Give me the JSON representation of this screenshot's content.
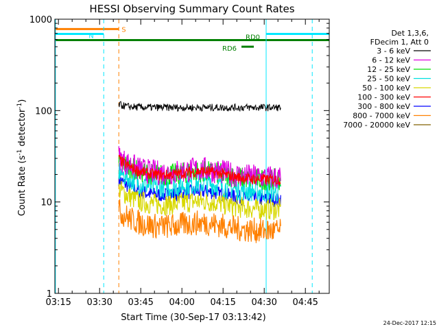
{
  "chart_data": {
    "type": "line",
    "title": "HESSI Observing Summary Count Rates",
    "xlabel": "Start Time (30-Sep-17 03:13:42)",
    "ylabel_main": "Count Rate (s",
    "ylabel_sup": "-1",
    "ylabel_mid": " detector",
    "ylabel_sup2": "-1",
    "ylabel_end": ")",
    "y_scale": "log",
    "ylim": [
      1,
      1000
    ],
    "xlim_minutes": [
      0,
      100
    ],
    "x_ticks": [
      {
        "label": "03:15",
        "minute": 1.3
      },
      {
        "label": "03:30",
        "minute": 16.3
      },
      {
        "label": "03:45",
        "minute": 31.3
      },
      {
        "label": "04:00",
        "minute": 46.3
      },
      {
        "label": "04:15",
        "minute": 61.3
      },
      {
        "label": "04:30",
        "minute": 76.3
      },
      {
        "label": "04:45",
        "minute": 91.3
      }
    ],
    "y_ticks": [
      {
        "label": "1",
        "value": 1
      },
      {
        "label": "10",
        "value": 10
      },
      {
        "label": "100",
        "value": 100
      },
      {
        "label": "1000",
        "value": 1000
      }
    ],
    "legend": {
      "header": [
        "Det 1,3,6,",
        "FDecim 1, Att 0"
      ],
      "placement": "right"
    },
    "series": [
      {
        "name": "3 - 6 keV",
        "color": "#000000",
        "level": 108,
        "noise": 0.04
      },
      {
        "name": "6 - 12 keV",
        "color": "#e000e0",
        "level": 20,
        "noise": 0.14
      },
      {
        "name": "12 - 25 keV",
        "color": "#00e000",
        "level": 19,
        "noise": 0.12
      },
      {
        "name": "25 - 50 keV",
        "color": "#00e0e0",
        "level": 14,
        "noise": 0.12
      },
      {
        "name": "50 - 100 keV",
        "color": "#d8d800",
        "level": 9,
        "noise": 0.12
      },
      {
        "name": "100 - 300 keV",
        "color": "#ff0000",
        "level": 19,
        "noise": 0.06
      },
      {
        "name": "300 - 800 keV",
        "color": "#0000ff",
        "level": 11.5,
        "noise": 0.08
      },
      {
        "name": "800 - 7000 keV",
        "color": "#ff8000",
        "level": 5.2,
        "noise": 0.14
      },
      {
        "name": "7000 - 20000 keV",
        "color": "#806000",
        "level": null,
        "noise": 0
      }
    ],
    "data_start_minute": 23.3,
    "data_end_minute": 82.3,
    "flags": [
      {
        "label": "S",
        "color": "#ff8000",
        "value": 780,
        "start_minute": 0,
        "end_minute": 23.3
      },
      {
        "label": "N",
        "color": "#00e8ff",
        "value": 690,
        "start_minute": 0,
        "end_minute": 17.8
      },
      {
        "label": "",
        "color": "#00e8ff",
        "value": 690,
        "start_minute": 77.0,
        "end_minute": 100
      },
      {
        "label": "RD0",
        "color": "#008000",
        "value": 590,
        "start_minute": 0,
        "end_minute": 100
      },
      {
        "label": "RD6",
        "color": "#008000",
        "value": 500,
        "start_minute": 68.0,
        "end_minute": 72.5
      }
    ],
    "vertical_lines": [
      {
        "minute": 0.2,
        "color": "#00e8ff",
        "style": "solid"
      },
      {
        "minute": 17.8,
        "color": "#00e8ff",
        "style": "dashed"
      },
      {
        "minute": 23.3,
        "color": "#ff8000",
        "style": "dashed"
      },
      {
        "minute": 77.0,
        "color": "#00e8ff",
        "style": "solid"
      },
      {
        "minute": 93.8,
        "color": "#00e8ff",
        "style": "dashed"
      }
    ]
  },
  "footer_timestamp": "24-Dec-2017 12:15"
}
